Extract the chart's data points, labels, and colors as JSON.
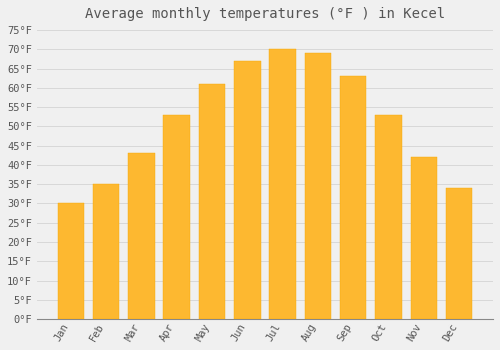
{
  "title": "Average monthly temperatures (°F ) in Kecel",
  "months": [
    "Jan",
    "Feb",
    "Mar",
    "Apr",
    "May",
    "Jun",
    "Jul",
    "Aug",
    "Sep",
    "Oct",
    "Nov",
    "Dec"
  ],
  "values": [
    30,
    35,
    43,
    53,
    61,
    67,
    70,
    69,
    63,
    53,
    42,
    34
  ],
  "bar_color": "#FDB830",
  "bar_edge_color": "#F5A800",
  "background_color": "#F0F0F0",
  "grid_color": "#D8D8D8",
  "text_color": "#555555",
  "ylim": [
    0,
    76
  ],
  "yticks": [
    0,
    5,
    10,
    15,
    20,
    25,
    30,
    35,
    40,
    45,
    50,
    55,
    60,
    65,
    70,
    75
  ],
  "title_fontsize": 10,
  "tick_fontsize": 7.5,
  "font_family": "monospace",
  "bar_width": 0.75
}
